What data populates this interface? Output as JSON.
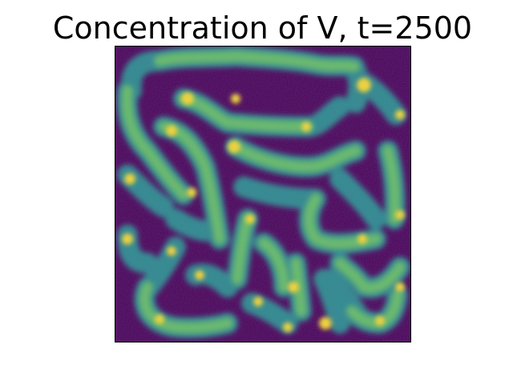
{
  "figure": {
    "title": "Concentration of V, t=2500"
  },
  "image": {
    "colormap": "viridis",
    "colors": {
      "background": "#440154",
      "low": "#3b528b",
      "mid": "#21918c",
      "high": "#5ec962",
      "peak": "#fde725"
    },
    "axis_visible": false
  }
}
